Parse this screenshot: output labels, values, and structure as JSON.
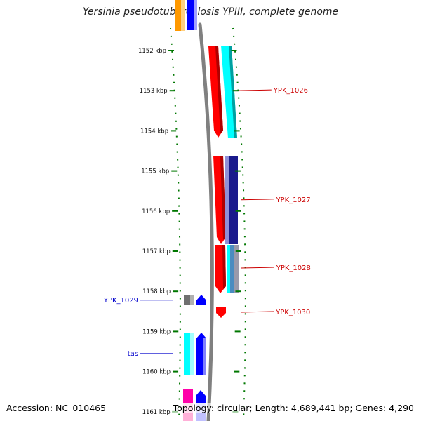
{
  "title": "Yersinia pseudotuberculosis YPIII, complete genome",
  "footer": {
    "accession": "Accession: NC_010465",
    "topology": "Topology: circular; Length: 4,689,441 bp; Genes: 4,290"
  },
  "axis": {
    "ticks": [
      {
        "label": "1152 kbp",
        "kbp": 1152
      },
      {
        "label": "1153 kbp",
        "kbp": 1153
      },
      {
        "label": "1154 kbp",
        "kbp": 1154
      },
      {
        "label": "1155 kbp",
        "kbp": 1155
      },
      {
        "label": "1156 kbp",
        "kbp": 1156
      },
      {
        "label": "1157 kbp",
        "kbp": 1157
      },
      {
        "label": "1158 kbp",
        "kbp": 1158
      },
      {
        "label": "1159 kbp",
        "kbp": 1159
      },
      {
        "label": "1160 kbp",
        "kbp": 1160
      },
      {
        "label": "1161 kbp",
        "kbp": 1161
      }
    ]
  },
  "colors": {
    "red": "#ff0000",
    "cyan": "#00ffff",
    "blue": "#0000ff",
    "navy": "#1a1a8c",
    "gray": "#808080",
    "orange": "#ff9900",
    "magenta": "#ff00aa",
    "pink": "#ffb0d8",
    "lavender": "#c0c0ff",
    "right_label": "#cc0000",
    "left_label": "#0000cc",
    "tick": "#007700"
  },
  "gene_labels": [
    {
      "name": "YPK_1026",
      "side": "right",
      "kbp": 1152.999
    },
    {
      "name": "YPK_1027",
      "side": "right",
      "kbp": 1155.72
    },
    {
      "name": "YPK_1028",
      "side": "right",
      "kbp": 1157.42
    },
    {
      "name": "YPK_1030",
      "side": "right",
      "kbp": 1158.52
    },
    {
      "name": "YPK_1029",
      "side": "left",
      "kbp": 1158.22
    },
    {
      "name": "tas",
      "side": "left",
      "kbp": 1159.55
    }
  ]
}
